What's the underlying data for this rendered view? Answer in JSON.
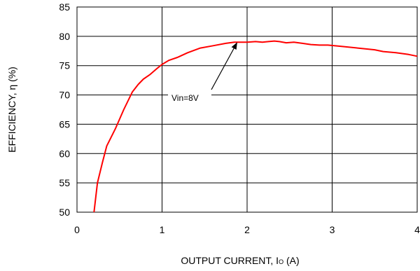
{
  "chart_data": {
    "type": "line",
    "title": "",
    "xlabel": "OUTPUT CURRENT, I",
    "xlabel_sub": "O",
    "xlabel_unit": " (A)",
    "ylabel": "EFFICIENCY, η  (%)",
    "xlim": [
      0,
      4
    ],
    "ylim": [
      50,
      85
    ],
    "xticks": [
      0,
      1,
      2,
      3,
      4
    ],
    "yticks": [
      50,
      55,
      60,
      65,
      70,
      75,
      80,
      85
    ],
    "grid": true,
    "series": [
      {
        "color": "#ff0000",
        "x": [
          0.2,
          0.24,
          0.3,
          0.35,
          0.45,
          0.55,
          0.65,
          0.72,
          0.78,
          0.86,
          0.94,
          1.0,
          1.08,
          1.18,
          1.3,
          1.45,
          1.6,
          1.75,
          1.85,
          1.9,
          2.0,
          2.1,
          2.18,
          2.25,
          2.32,
          2.38,
          2.46,
          2.55,
          2.65,
          2.75,
          2.85,
          2.95,
          3.1,
          3.3,
          3.5,
          3.6,
          3.75,
          3.9,
          4.0
        ],
        "y": [
          50,
          55,
          58.5,
          61.3,
          64.2,
          67.5,
          70.5,
          71.8,
          72.7,
          73.5,
          74.5,
          75.2,
          75.9,
          76.4,
          77.2,
          78.0,
          78.4,
          78.8,
          79.0,
          79.0,
          79.0,
          79.1,
          79.0,
          79.1,
          79.2,
          79.1,
          78.9,
          79.0,
          78.8,
          78.6,
          78.5,
          78.5,
          78.3,
          78.0,
          77.7,
          77.4,
          77.2,
          76.9,
          76.6
        ]
      }
    ],
    "annotations": [
      {
        "text": "Vin=8V",
        "arrow_to": [
          1.88,
          79.0
        ]
      }
    ]
  }
}
